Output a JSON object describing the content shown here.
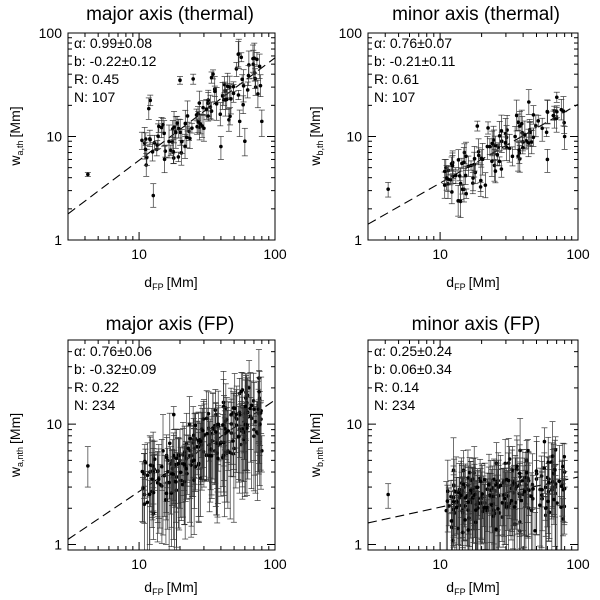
{
  "figure": {
    "panels": [
      {
        "title": "major axis (thermal)",
        "xlabel": "d",
        "xlabel_sub": "FP",
        "xunit": "[Mm]",
        "ylabel": "w",
        "ylabel_sub": "a,th",
        "yunit": "[Mm]",
        "stats": [
          "α: 0.99±0.08",
          "b: -0.22±0.12",
          "R: 0.45",
          "N: 107"
        ]
      },
      {
        "title": "minor axis (thermal)",
        "xlabel": "d",
        "xlabel_sub": "FP",
        "xunit": "[Mm]",
        "ylabel": "w",
        "ylabel_sub": "b,th",
        "yunit": "[Mm]",
        "stats": [
          "α: 0.76±0.07",
          "b: -0.21±0.11",
          "R: 0.61",
          "N: 107"
        ]
      },
      {
        "title": "major axis (FP)",
        "xlabel": "d",
        "xlabel_sub": "FP",
        "xunit": "[Mm]",
        "ylabel": "w",
        "ylabel_sub": "a,nth",
        "yunit": "[Mm]",
        "stats": [
          "α: 0.76±0.06",
          "b: -0.32±0.09",
          "R: 0.22",
          "N: 234"
        ]
      },
      {
        "title": "minor axis (FP)",
        "xlabel": "d",
        "xlabel_sub": "FP",
        "xunit": "[Mm]",
        "ylabel": "w",
        "ylabel_sub": "b,nth",
        "yunit": "[Mm]",
        "stats": [
          "α: 0.25±0.24",
          "b: 0.06±0.34",
          "R: 0.14",
          "N: 234"
        ]
      }
    ]
  },
  "chart_data": [
    {
      "type": "scatter",
      "title": "major axis (thermal)",
      "xlabel": "dFP [Mm]",
      "ylabel": "wa,th [Mm]",
      "xscale": "log",
      "yscale": "log",
      "xlim": [
        3,
        100
      ],
      "ylim": [
        1,
        100
      ],
      "xticks": [
        10,
        100
      ],
      "xtick_labels": [
        "10",
        "100"
      ],
      "yticks": [
        1,
        10,
        100
      ],
      "ytick_labels": [
        "1",
        "10",
        "100"
      ],
      "fit": {
        "alpha": 0.99,
        "b": -0.22
      },
      "N": 107,
      "seed": 11,
      "points": [
        {
          "x": 4.2,
          "y": 4.3,
          "lo": 4.1,
          "hi": 4.5
        },
        {
          "x": 10.5,
          "y": 9.2,
          "lo": 7.5,
          "hi": 11
        },
        {
          "x": 12,
          "y": 9.5,
          "lo": 8,
          "hi": 11.5
        },
        {
          "x": 13.5,
          "y": 7.5,
          "lo": 6.5,
          "hi": 8.5
        },
        {
          "x": 15,
          "y": 13,
          "lo": 11,
          "hi": 15
        },
        {
          "x": 18,
          "y": 6.2,
          "lo": 5.5,
          "hi": 7
        },
        {
          "x": 20,
          "y": 35,
          "lo": 32,
          "hi": 38
        },
        {
          "x": 25,
          "y": 36,
          "lo": 32,
          "hi": 40
        },
        {
          "x": 30,
          "y": 12,
          "lo": 9,
          "hi": 16
        },
        {
          "x": 35,
          "y": 40,
          "lo": 36,
          "hi": 44
        },
        {
          "x": 40,
          "y": 8,
          "lo": 6,
          "hi": 10
        },
        {
          "x": 52,
          "y": 45,
          "lo": 38,
          "hi": 52
        },
        {
          "x": 55,
          "y": 14,
          "lo": 10,
          "hi": 18
        },
        {
          "x": 60,
          "y": 9,
          "lo": 6.5,
          "hi": 12
        },
        {
          "x": 72,
          "y": 30,
          "lo": 25,
          "hi": 35
        },
        {
          "x": 80,
          "y": 14,
          "lo": 10,
          "hi": 18
        }
      ]
    },
    {
      "type": "scatter",
      "title": "minor axis (thermal)",
      "xlabel": "dFP [Mm]",
      "ylabel": "wb,th [Mm]",
      "xscale": "log",
      "yscale": "log",
      "xlim": [
        3,
        100
      ],
      "ylim": [
        1,
        100
      ],
      "xticks": [
        10,
        100
      ],
      "xtick_labels": [
        "10",
        "100"
      ],
      "yticks": [
        1,
        10,
        100
      ],
      "ytick_labels": [
        "1",
        "10",
        "100"
      ],
      "fit": {
        "alpha": 0.76,
        "b": -0.21
      },
      "N": 107,
      "seed": 23,
      "points": [
        {
          "x": 4.2,
          "y": 3.1,
          "lo": 2.6,
          "hi": 3.6
        },
        {
          "x": 11,
          "y": 5,
          "lo": 4,
          "hi": 6
        },
        {
          "x": 13,
          "y": 4.2,
          "lo": 3.5,
          "hi": 5
        },
        {
          "x": 15,
          "y": 7,
          "lo": 5.5,
          "hi": 8.5
        },
        {
          "x": 18,
          "y": 4.5,
          "lo": 3.5,
          "hi": 5.5
        },
        {
          "x": 22,
          "y": 8,
          "lo": 6,
          "hi": 10
        },
        {
          "x": 28,
          "y": 9,
          "lo": 7,
          "hi": 11
        },
        {
          "x": 35,
          "y": 10,
          "lo": 7.5,
          "hi": 12.5
        },
        {
          "x": 45,
          "y": 11,
          "lo": 8,
          "hi": 14
        },
        {
          "x": 55,
          "y": 12,
          "lo": 9,
          "hi": 15
        },
        {
          "x": 60,
          "y": 6,
          "lo": 4.5,
          "hi": 7.5
        },
        {
          "x": 70,
          "y": 15,
          "lo": 11,
          "hi": 19
        },
        {
          "x": 80,
          "y": 10,
          "lo": 7.5,
          "hi": 12.5
        }
      ]
    },
    {
      "type": "scatter",
      "title": "major axis (FP)",
      "xlabel": "dFP [Mm]",
      "ylabel": "wa,nth [Mm]",
      "xscale": "log",
      "yscale": "log",
      "xlim": [
        3,
        100
      ],
      "ylim": [
        0.9,
        50
      ],
      "xticks": [
        10,
        100
      ],
      "xtick_labels": [
        "10",
        "100"
      ],
      "yticks": [
        1,
        10
      ],
      "ytick_labels": [
        "1",
        "10"
      ],
      "fit": {
        "alpha": 0.76,
        "b": -0.32
      },
      "N": 234,
      "seed": 37,
      "points": [
        {
          "x": 4.2,
          "y": 4.5,
          "lo": 3,
          "hi": 6.5
        },
        {
          "x": 12,
          "y": 4,
          "lo": 1,
          "hi": 8
        },
        {
          "x": 15,
          "y": 6,
          "lo": 1.2,
          "hi": 12
        },
        {
          "x": 18,
          "y": 12,
          "lo": 9,
          "hi": 14
        },
        {
          "x": 20,
          "y": 5,
          "lo": 2,
          "hi": 9
        },
        {
          "x": 25,
          "y": 7,
          "lo": 2.5,
          "hi": 14
        },
        {
          "x": 30,
          "y": 8,
          "lo": 3,
          "hi": 16
        },
        {
          "x": 35,
          "y": 9,
          "lo": 3.5,
          "hi": 18
        },
        {
          "x": 45,
          "y": 6,
          "lo": 2,
          "hi": 13
        },
        {
          "x": 55,
          "y": 18,
          "lo": 12,
          "hi": 24
        },
        {
          "x": 60,
          "y": 7,
          "lo": 2.5,
          "hi": 15
        },
        {
          "x": 70,
          "y": 9,
          "lo": 5,
          "hi": 14
        },
        {
          "x": 80,
          "y": 6,
          "lo": 4,
          "hi": 8
        }
      ]
    },
    {
      "type": "scatter",
      "title": "minor axis (FP)",
      "xlabel": "dFP [Mm]",
      "ylabel": "wb,nth [Mm]",
      "xscale": "log",
      "yscale": "log",
      "xlim": [
        3,
        100
      ],
      "ylim": [
        0.9,
        50
      ],
      "xticks": [
        10,
        100
      ],
      "xtick_labels": [
        "10",
        "100"
      ],
      "yticks": [
        1,
        10
      ],
      "ytick_labels": [
        "1",
        "10"
      ],
      "fit": {
        "alpha": 0.25,
        "b": 0.06
      },
      "N": 234,
      "seed": 53,
      "points": [
        {
          "x": 4.2,
          "y": 2.6,
          "lo": 2,
          "hi": 3.2
        },
        {
          "x": 12,
          "y": 2.5,
          "lo": 1.8,
          "hi": 3.4
        },
        {
          "x": 15,
          "y": 3,
          "lo": 1.4,
          "hi": 4.5
        },
        {
          "x": 20,
          "y": 2.4,
          "lo": 1.1,
          "hi": 4
        },
        {
          "x": 25,
          "y": 2.8,
          "lo": 1.3,
          "hi": 5
        },
        {
          "x": 30,
          "y": 2.2,
          "lo": 1,
          "hi": 4
        },
        {
          "x": 35,
          "y": 3.2,
          "lo": 1.6,
          "hi": 5.5
        },
        {
          "x": 40,
          "y": 2.6,
          "lo": 1.2,
          "hi": 4.5
        },
        {
          "x": 50,
          "y": 3.5,
          "lo": 2,
          "hi": 5
        },
        {
          "x": 55,
          "y": 2.4,
          "lo": 1.3,
          "hi": 4
        },
        {
          "x": 65,
          "y": 3,
          "lo": 2,
          "hi": 4.2
        },
        {
          "x": 80,
          "y": 4,
          "lo": 3,
          "hi": 5
        }
      ]
    }
  ]
}
